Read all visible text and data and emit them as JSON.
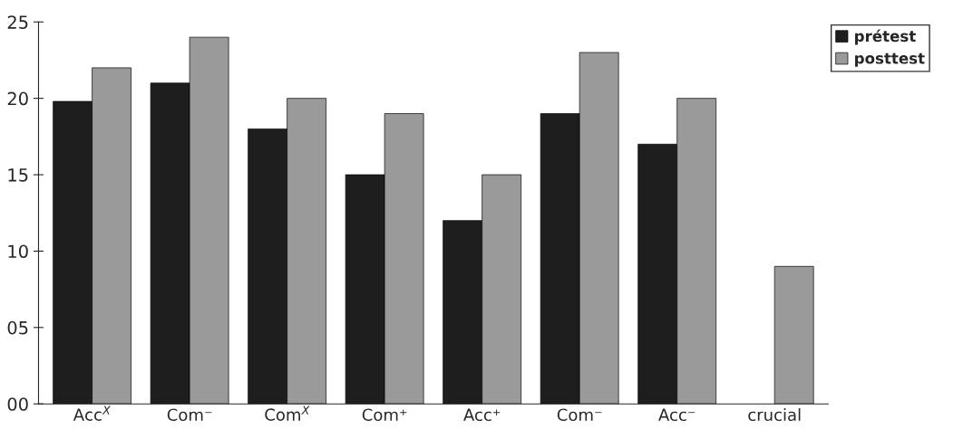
{
  "chart_data": {
    "type": "bar",
    "categories": [
      "Acc$^{X}$",
      "Com⁻",
      "Com$^{X}$",
      "Com⁺",
      "Acc⁺",
      "Com⁻",
      "Acc⁻",
      "crucial"
    ],
    "series": [
      {
        "name": "prétest",
        "color": "#1e1e1e",
        "values": [
          19.8,
          21,
          18,
          15,
          12,
          19,
          17,
          null
        ]
      },
      {
        "name": "posttest",
        "color": "#9a9a9a",
        "values": [
          22,
          24,
          20,
          19,
          15,
          23,
          20,
          9
        ]
      }
    ],
    "ylim": [
      0,
      25
    ],
    "yticks": [
      {
        "value": 0,
        "label": "00"
      },
      {
        "value": 5,
        "label": "05"
      },
      10,
      15,
      20,
      25
    ],
    "grid": false,
    "legend": "top right"
  }
}
